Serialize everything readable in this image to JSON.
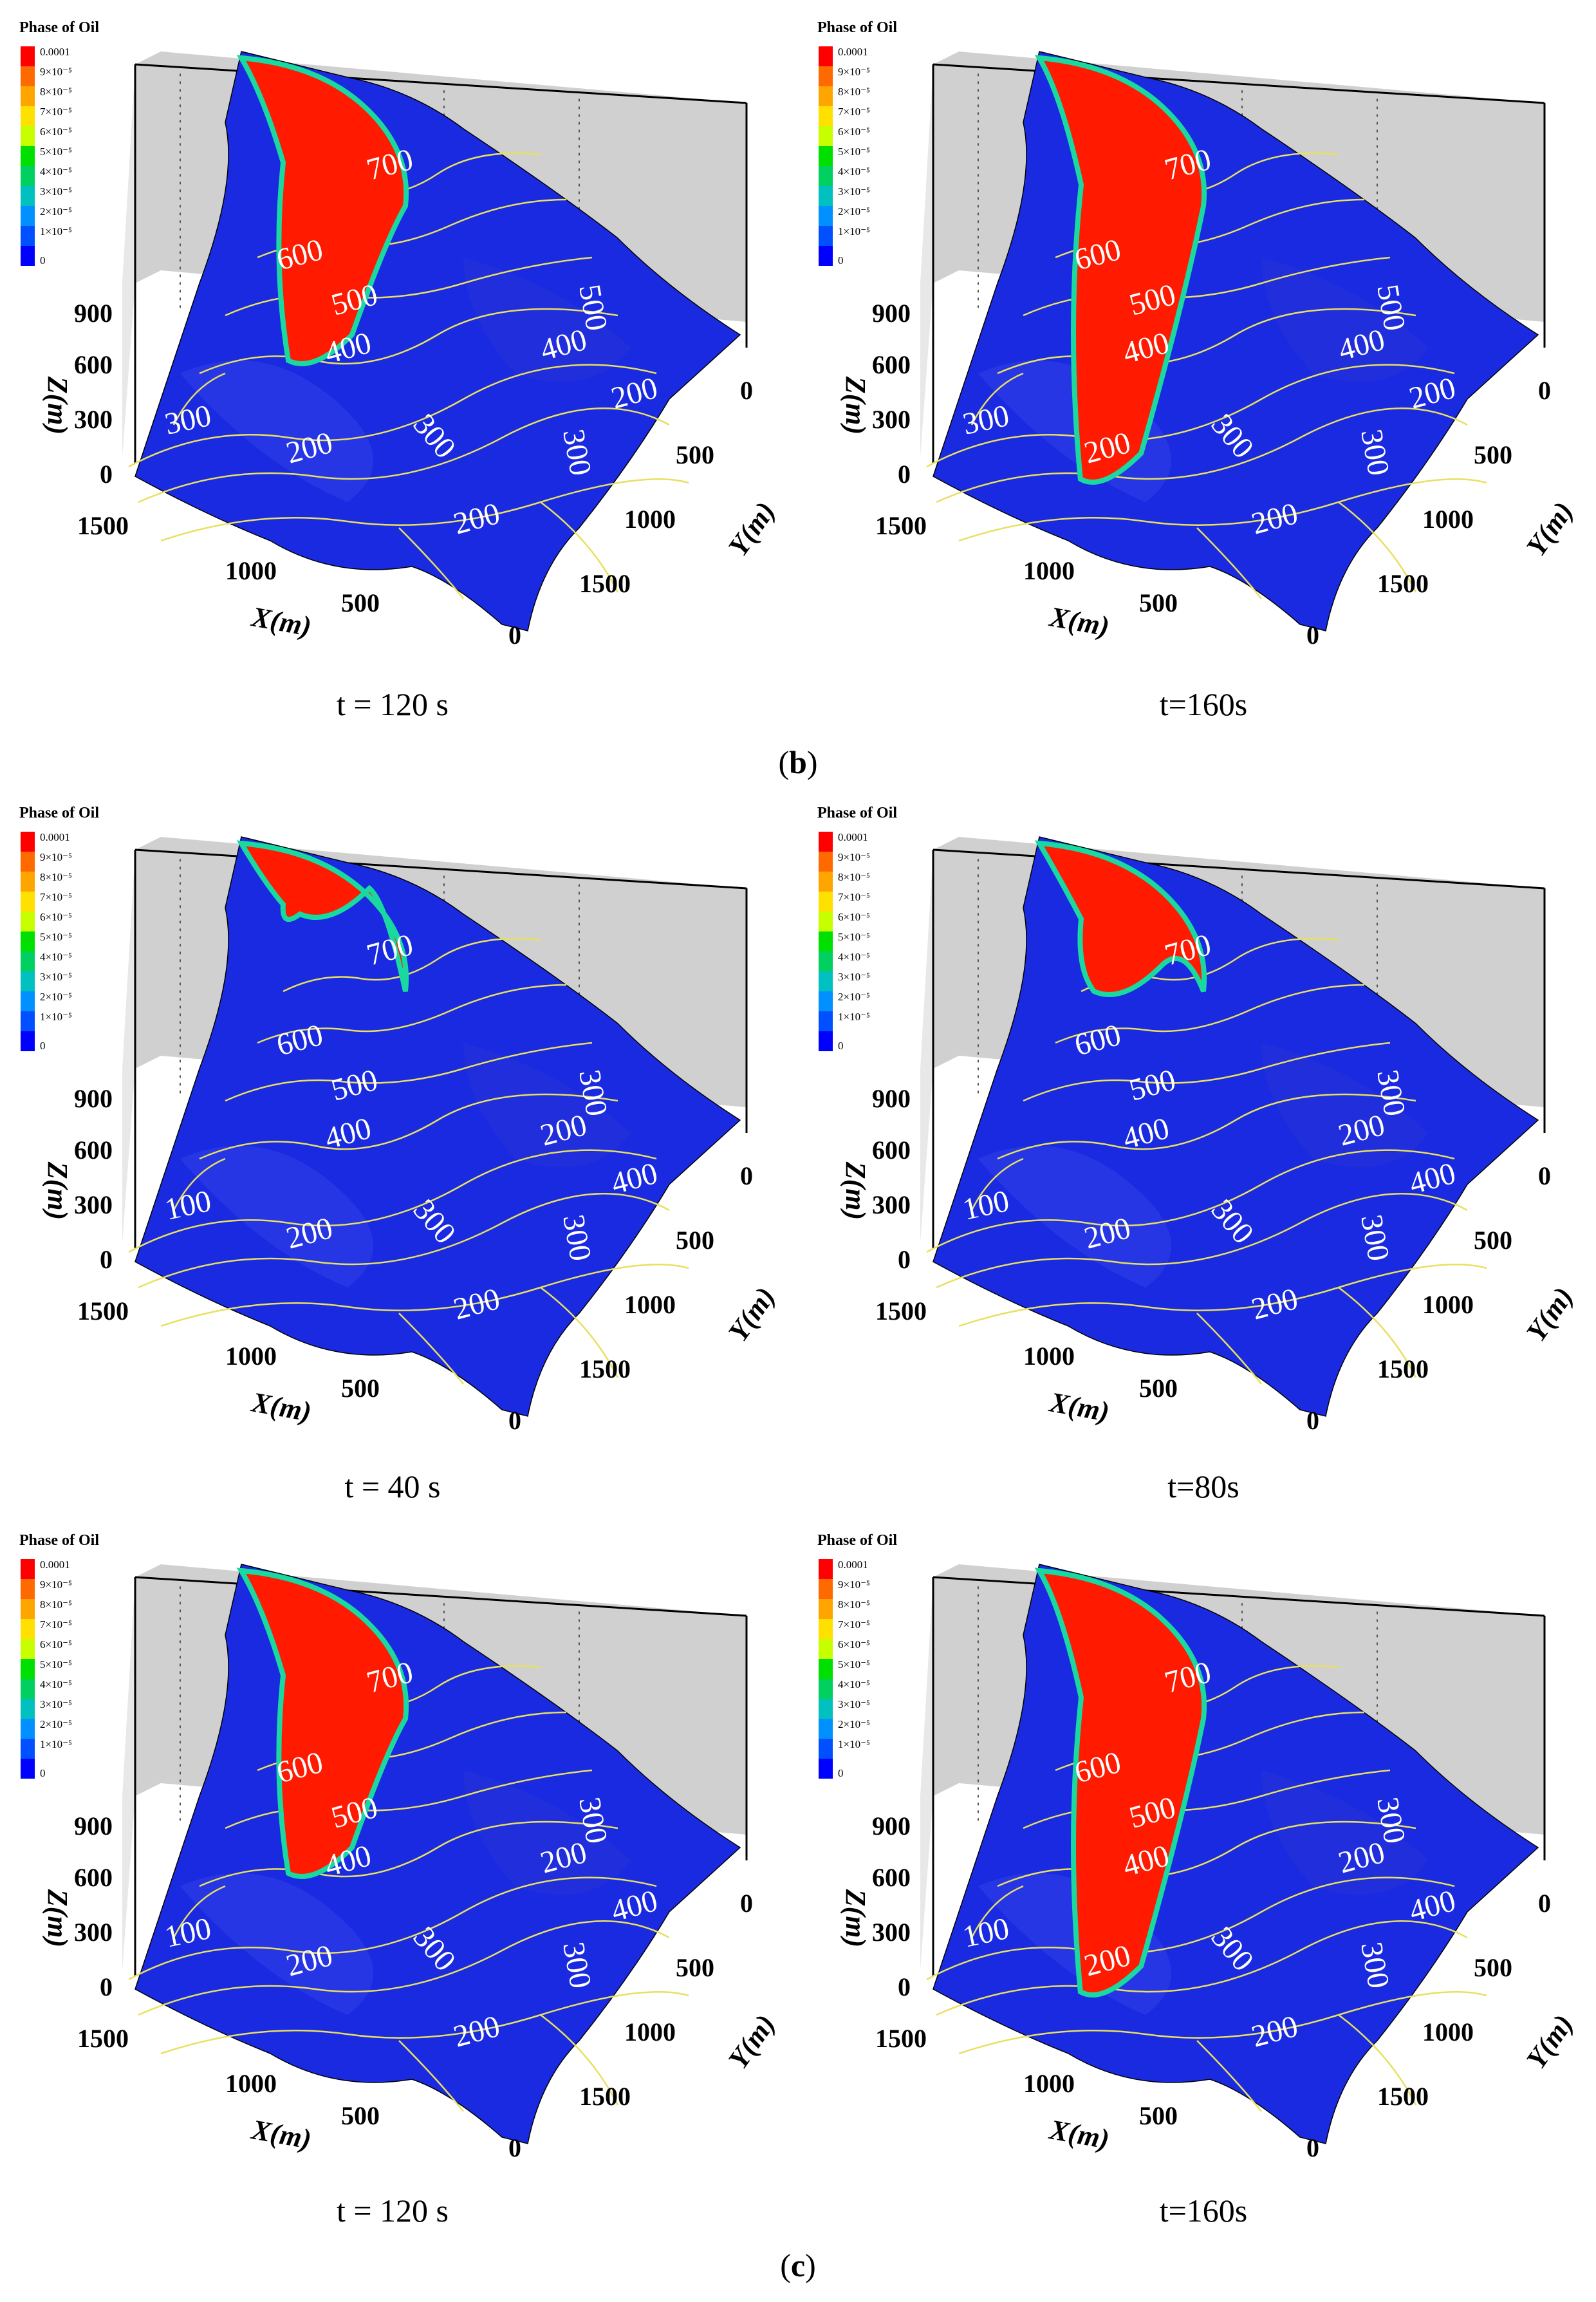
{
  "figure": {
    "subfigure_labels": [
      "b",
      "c"
    ],
    "legend": {
      "title": "Phase of Oil",
      "ticks": [
        "0.0001",
        "9×10⁻⁵",
        "8×10⁻⁵",
        "7×10⁻⁵",
        "6×10⁻⁵",
        "5×10⁻⁵",
        "4×10⁻⁵",
        "3×10⁻⁵",
        "2×10⁻⁵",
        "1×10⁻⁵",
        "0"
      ],
      "colors": [
        "#ff0000",
        "#ff6a00",
        "#ffa500",
        "#ffe000",
        "#c8ff00",
        "#00e000",
        "#00d060",
        "#00c0c0",
        "#0090ff",
        "#0050ff",
        "#0000ff"
      ]
    },
    "axes": {
      "z_label": "Z(m)",
      "z_ticks": [
        "900",
        "600",
        "300",
        "0"
      ],
      "x_label": "X(m)",
      "x_ticks": [
        "1500",
        "1000",
        "500",
        "0"
      ],
      "y_label": "Y(m)",
      "y_ticks": [
        "0",
        "500",
        "1000",
        "1500"
      ]
    },
    "colors": {
      "terrain": "#1a2ae0",
      "oil": "#ff1a00",
      "contour": "#e8e060",
      "box": "#d0d0d0"
    },
    "panels": [
      {
        "caption": "t = 120 s",
        "oil_extent": 0.55,
        "contour_labels": [
          "700",
          "600",
          "500",
          "400",
          "300",
          "200",
          "300",
          "200",
          "500",
          "400",
          "300",
          "200"
        ]
      },
      {
        "caption": "t=160s",
        "oil_extent": 0.78,
        "contour_labels": [
          "700",
          "600",
          "500",
          "400",
          "300",
          "200",
          "300",
          "200",
          "500",
          "400",
          "300",
          "200"
        ]
      },
      {
        "caption": "t = 40 s",
        "oil_extent": 0.1,
        "contour_labels": [
          "700",
          "600",
          "500",
          "400",
          "300",
          "200",
          "100",
          "200",
          "300",
          "200",
          "300",
          "400"
        ]
      },
      {
        "caption": "t=80s",
        "oil_extent": 0.25,
        "contour_labels": [
          "700",
          "600",
          "500",
          "400",
          "300",
          "200",
          "100",
          "200",
          "300",
          "200",
          "300",
          "400"
        ]
      },
      {
        "caption": "t = 120 s",
        "oil_extent": 0.55,
        "contour_labels": [
          "700",
          "600",
          "500",
          "400",
          "300",
          "200",
          "100",
          "200",
          "300",
          "200",
          "300",
          "400"
        ]
      },
      {
        "caption": "t=160s",
        "oil_extent": 0.78,
        "contour_labels": [
          "700",
          "600",
          "500",
          "400",
          "300",
          "200",
          "100",
          "200",
          "300",
          "200",
          "300",
          "400"
        ]
      }
    ]
  }
}
